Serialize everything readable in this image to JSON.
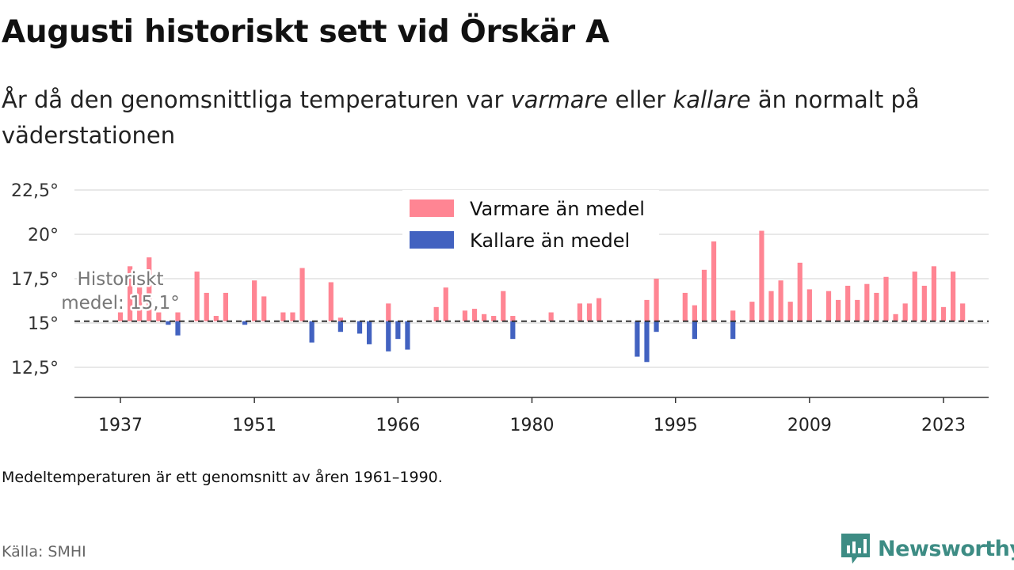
{
  "header": {
    "title": "Augusti historiskt sett vid Örskär A",
    "subtitle_parts": [
      "År då den genomsnittliga temperaturen var ",
      "varmare",
      " eller ",
      "kallare",
      " än normalt på väderstationen"
    ]
  },
  "footer": {
    "note": "Medeltemperaturen är ett genomsnitt av åren 1961–1990.",
    "source": "Källa: SMHI",
    "brand": "Newsworthy"
  },
  "colors": {
    "warm": "#ff8593",
    "cold": "#4262c0",
    "brand": "#3d8c84"
  },
  "icons": {
    "brand_logo": "newsworthy-logo-icon"
  },
  "chart_data": {
    "type": "bar",
    "title": "",
    "xlabel": "",
    "ylabel": "",
    "baseline": 15.1,
    "baseline_label": [
      "Historiskt",
      "medel: 15,1°"
    ],
    "ylim": [
      10.8,
      22.8
    ],
    "y_ticks": [
      12.5,
      15,
      17.5,
      20,
      22.5
    ],
    "y_tick_labels": [
      "12,5°",
      "15°",
      "17,5°",
      "20°",
      "22,5°"
    ],
    "x_ticks": [
      1937,
      1951,
      1966,
      1980,
      1995,
      2009,
      2023
    ],
    "x_range": [
      1932,
      2028
    ],
    "grid": true,
    "legend": {
      "position": "top-center",
      "items": [
        "Varmare än medel",
        "Kallare än medel"
      ]
    },
    "series": [
      {
        "name": "Varmare än medel",
        "color": "#ff8593",
        "points": [
          [
            1937,
            15.6
          ],
          [
            1938,
            18.2
          ],
          [
            1939,
            17.0
          ],
          [
            1940,
            18.7
          ],
          [
            1941,
            15.6
          ],
          [
            1943,
            15.6
          ],
          [
            1945,
            17.9
          ],
          [
            1946,
            16.7
          ],
          [
            1947,
            15.4
          ],
          [
            1948,
            16.7
          ],
          [
            1951,
            17.4
          ],
          [
            1952,
            16.5
          ],
          [
            1954,
            15.6
          ],
          [
            1955,
            15.6
          ],
          [
            1956,
            18.1
          ],
          [
            1959,
            17.3
          ],
          [
            1960,
            15.3
          ],
          [
            1965,
            16.1
          ],
          [
            1970,
            15.9
          ],
          [
            1971,
            17.0
          ],
          [
            1973,
            15.7
          ],
          [
            1974,
            15.8
          ],
          [
            1975,
            15.5
          ],
          [
            1976,
            15.4
          ],
          [
            1977,
            16.8
          ],
          [
            1978,
            15.4
          ],
          [
            1982,
            15.6
          ],
          [
            1985,
            16.1
          ],
          [
            1986,
            16.1
          ],
          [
            1987,
            16.4
          ],
          [
            1992,
            16.3
          ],
          [
            1993,
            17.5
          ],
          [
            1996,
            16.7
          ],
          [
            1997,
            16.0
          ],
          [
            1998,
            18.0
          ],
          [
            1999,
            19.6
          ],
          [
            2001,
            15.7
          ],
          [
            2003,
            16.2
          ],
          [
            2004,
            20.2
          ],
          [
            2005,
            16.8
          ],
          [
            2006,
            17.4
          ],
          [
            2007,
            16.2
          ],
          [
            2008,
            18.4
          ],
          [
            2009,
            16.9
          ],
          [
            2011,
            16.8
          ],
          [
            2012,
            16.3
          ],
          [
            2013,
            17.1
          ],
          [
            2014,
            16.3
          ],
          [
            2015,
            17.2
          ],
          [
            2016,
            16.7
          ],
          [
            2017,
            17.6
          ],
          [
            2018,
            15.5
          ],
          [
            2019,
            16.1
          ],
          [
            2020,
            17.9
          ],
          [
            2021,
            17.1
          ],
          [
            2022,
            18.2
          ],
          [
            2023,
            15.9
          ],
          [
            2024,
            17.9
          ],
          [
            2025,
            16.1
          ]
        ]
      },
      {
        "name": "Kallare än medel",
        "color": "#4262c0",
        "points": [
          [
            1942,
            14.9
          ],
          [
            1943,
            14.3
          ],
          [
            1950,
            14.9
          ],
          [
            1957,
            13.9
          ],
          [
            1960,
            14.5
          ],
          [
            1962,
            14.4
          ],
          [
            1963,
            13.8
          ],
          [
            1965,
            13.4
          ],
          [
            1966,
            14.1
          ],
          [
            1967,
            13.5
          ],
          [
            1978,
            14.1
          ],
          [
            1991,
            13.1
          ],
          [
            1992,
            12.8
          ],
          [
            1993,
            14.5
          ],
          [
            1997,
            14.1
          ],
          [
            2001,
            14.1
          ]
        ]
      }
    ]
  }
}
